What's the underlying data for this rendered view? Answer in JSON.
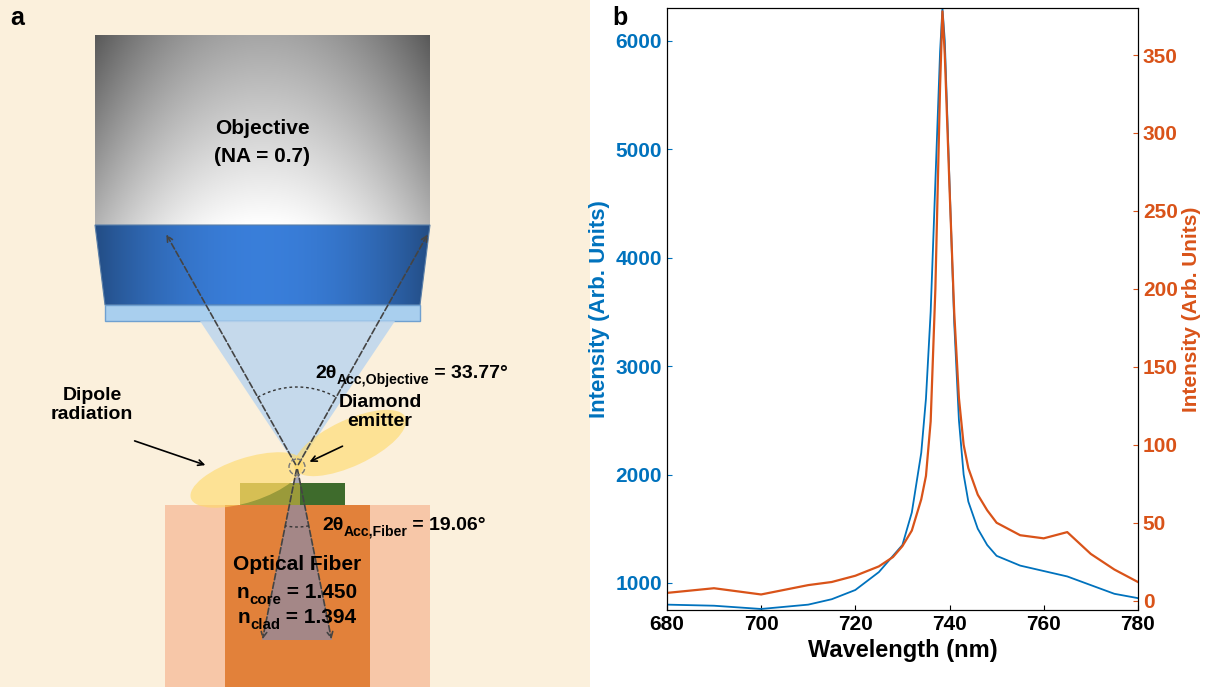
{
  "panel_labels": [
    "a",
    "b"
  ],
  "diagram": {
    "objective": {
      "label": "Objective",
      "note": "(NA = 0.7)"
    },
    "objective_angle": {
      "symbol": "2θ",
      "subscript": "Acc,Objective",
      "text": " = 33.77°"
    },
    "fiber_angle": {
      "symbol": "2θ",
      "subscript": "Acc,Fiber",
      "text": " = 19.06°"
    },
    "dipole_label": "Dipole\nradiation",
    "emitter_label": "Diamond\nemitter",
    "fiber": {
      "label": "Optical Fiber",
      "core": {
        "symbol": "n",
        "subscript": "core",
        "text": " = 1.450"
      },
      "cladding": {
        "symbol": "n",
        "subscript": "clad",
        "text": " = 1.394"
      }
    }
  },
  "chart_data": {
    "type": "line",
    "xlabel": "Wavelength (nm)",
    "ylabel": "Intensity (Arb. Units)",
    "y2label": "Intensity (Arb. Units)",
    "x": [
      680,
      690,
      700,
      710,
      715,
      720,
      725,
      728,
      730,
      732,
      734,
      735,
      736,
      737,
      738,
      738.5,
      739,
      740,
      741,
      742,
      743,
      744,
      746,
      748,
      750,
      755,
      760,
      765,
      770,
      775,
      780
    ],
    "xlim": [
      680,
      780
    ],
    "xticks": [
      680,
      700,
      720,
      740,
      760,
      780
    ],
    "ylim": [
      750,
      6300
    ],
    "yticks": [
      1000,
      2000,
      3000,
      4000,
      5000,
      6000
    ],
    "y2lim": [
      -6,
      380
    ],
    "y2ticks": [
      0,
      50,
      100,
      150,
      200,
      250,
      300,
      350
    ],
    "series": [
      {
        "color": "#0072bd",
        "values": [
          800,
          790,
          760,
          800,
          850,
          935,
          1100,
          1250,
          1350,
          1650,
          2200,
          2700,
          3500,
          4700,
          5900,
          6300,
          6000,
          4700,
          3400,
          2500,
          2000,
          1750,
          1500,
          1350,
          1250,
          1160,
          1110,
          1060,
          980,
          900,
          860
        ]
      },
      {
        "color": "#d95319",
        "axis": "y2",
        "values": [
          5,
          8,
          4,
          10,
          12,
          16,
          22,
          28,
          35,
          45,
          65,
          80,
          115,
          200,
          330,
          378,
          350,
          265,
          185,
          130,
          100,
          85,
          68,
          58,
          50,
          42,
          40,
          44,
          30,
          20,
          12
        ]
      }
    ]
  }
}
